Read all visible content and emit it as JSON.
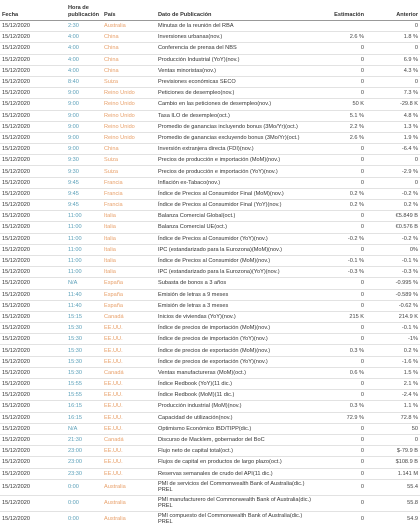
{
  "table": {
    "header": [
      "Fecha",
      "Hora de publicación",
      "País",
      "Dato de Publicación",
      "Estimación",
      "Anterior"
    ],
    "rows": [
      [
        "15/12/2020",
        "2:30",
        "Australia",
        "Minutas de la reunión del RBA",
        null,
        "0"
      ],
      [
        "15/12/2020",
        "4:00",
        "China",
        "Inversiones urbanas(nov.)",
        "2.6 %",
        "1.8 %"
      ],
      [
        "15/12/2020",
        "4:00",
        "China",
        "Conferencia de prensa del NBS",
        "0",
        "0"
      ],
      [
        "15/12/2020",
        "4:00",
        "China",
        "Producción Industrial (YoY)(nov.)",
        "0",
        "6.9 %"
      ],
      [
        "15/12/2020",
        "4:00",
        "China",
        "Ventas minoristas(nov.)",
        "0",
        "4.3 %"
      ],
      [
        "15/12/2020",
        "8:40",
        "Suiza",
        "Previsiones económicas SECO",
        "0",
        "0"
      ],
      [
        "15/12/2020",
        "9:00",
        "Reino Unido",
        "Peticiones de desempleo(nov.)",
        "0",
        "7.3 %"
      ],
      [
        "15/12/2020",
        "9:00",
        "Reino Unido",
        "Cambio en las peticiones de desempleo(nov.)",
        "50 K",
        "-29.8 K"
      ],
      [
        "15/12/2020",
        "9:00",
        "Reino Unido",
        "Tasa ILO de desempleo(oct.)",
        "5.1 %",
        "4.8 %"
      ],
      [
        "15/12/2020",
        "9:00",
        "Reino Unido",
        "Promedio de ganancias incluyendo bonus (3Mo/Yr)(oct.)",
        "2.2 %",
        "1.3 %"
      ],
      [
        "15/12/2020",
        "9:00",
        "Reino Unido",
        "Promedio de ganancias excluyendo bonus (3Mo/Yr)(oct.)",
        "2.6 %",
        "1.9 %"
      ],
      [
        "15/12/2020",
        "9:00",
        "China",
        "Inversión extranjera directa (FDI)(nov.)",
        "0",
        "-6.4 %"
      ],
      [
        "15/12/2020",
        "9:30",
        "Suiza",
        "Precios de producción e importación (MoM)(nov.)",
        "0",
        "0"
      ],
      [
        "15/12/2020",
        "9:30",
        "Suiza",
        "Precios de producción e importación (YoY)(nov.)",
        "0",
        "-2.9 %"
      ],
      [
        "15/12/2020",
        "9:45",
        "Francia",
        "Inflación ex-Tabaco(nov.)",
        "0",
        "0"
      ],
      [
        "15/12/2020",
        "9:45",
        "Francia",
        "Índice de Precios al Consumidor Final (MoM)(nov.)",
        "0.2 %",
        "-0.2 %"
      ],
      [
        "15/12/2020",
        "9:45",
        "Francia",
        "Índice de Precios al Consumidor Final (YoY)(nov.)",
        "0.2 %",
        "0.2 %"
      ],
      [
        "15/12/2020",
        "11:00",
        "Italia",
        "Balanza Comercial Global(oct.)",
        "0",
        "€5.849 B"
      ],
      [
        "15/12/2020",
        "11:00",
        "Italia",
        "Balanza Comercial UE(oct.)",
        "0",
        "€0.576 B"
      ],
      [
        "15/12/2020",
        "11:00",
        "Italia",
        "Índice de Precios al Consumidor (YoY)(nov.)",
        "-0.2 %",
        "-0.2 %"
      ],
      [
        "15/12/2020",
        "11:00",
        "Italia",
        "IPC (estandarizado para la Eurozona)(MoM)(nov.)",
        "0",
        "0%"
      ],
      [
        "15/12/2020",
        "11:00",
        "Italia",
        "Índice de Precios al Consumidor (MoM)(nov.)",
        "-0.1 %",
        "-0.1 %"
      ],
      [
        "15/12/2020",
        "11:00",
        "Italia",
        "IPC (estandarizado para la Eurozona)(YoY)(nov.)",
        "-0.3 %",
        "-0.3 %"
      ],
      [
        "15/12/2020",
        "N/A",
        "España",
        "Subasta de bonos a 3 años",
        "0",
        "-0.995 %"
      ],
      [
        "15/12/2020",
        "11:40",
        "España",
        "Emisión de letras a 9 meses",
        "0",
        "-0.589 %"
      ],
      [
        "15/12/2020",
        "11:40",
        "España",
        "Emisión de letras a 3 meses",
        "0",
        "-0.62 %"
      ],
      [
        "15/12/2020",
        "15:15",
        "Canadá",
        "Inicios de viviendas (YoY)(nov.)",
        "215 K",
        "214.9 K"
      ],
      [
        "15/12/2020",
        "15:30",
        "EE.UU.",
        "Índice de precios de importación (MoM)(nov.)",
        "0",
        "-0.1 %"
      ],
      [
        "15/12/2020",
        "15:30",
        "EE.UU.",
        "Índice de precios de importación (YoY)(nov.)",
        "0",
        "-1%"
      ],
      [
        "15/12/2020",
        "15:30",
        "EE.UU.",
        "Índice de precios de exportación (MoM)(nov.)",
        "0.3 %",
        "0.2 %"
      ],
      [
        "15/12/2020",
        "15:30",
        "EE.UU.",
        "Índice de precios de exportación (YoY)(nov.)",
        "0",
        "-1.6 %"
      ],
      [
        "15/12/2020",
        "15:30",
        "Canadá",
        "Ventas manufactureras (MoM)(oct.)",
        "0.6 %",
        "1.5 %"
      ],
      [
        "15/12/2020",
        "15:55",
        "EE.UU.",
        "Índice Redbook (YoY)(11 dic.)",
        "0",
        "2.1 %"
      ],
      [
        "15/12/2020",
        "15:55",
        "EE.UU.",
        "Índice Redbook (MoM)(11 dic.)",
        "0",
        "-2.4 %"
      ],
      [
        "15/12/2020",
        "16:15",
        "EE.UU.",
        "Producción industrial (MoM)(nov.)",
        "0.3 %",
        "1.1 %"
      ],
      [
        "15/12/2020",
        "16:15",
        "EE.UU.",
        "Capacidad de utilización(nov.)",
        "72.9 %",
        "72.8 %"
      ],
      [
        "15/12/2020",
        "N/A",
        "EE.UU.",
        "Optimismo Económico IBD/TIPP(dic.)",
        "0",
        "50"
      ],
      [
        "15/12/2020",
        "21:30",
        "Canadá",
        "Discurso de Macklem, gobernador del BoC",
        "0",
        "0"
      ],
      [
        "15/12/2020",
        "23:00",
        "EE.UU.",
        "Flujo neto de capital total(oct.)",
        "0",
        "$-79.9 B"
      ],
      [
        "15/12/2020",
        "23:00",
        "EE.UU.",
        "Flujos de capital en productos de largo plazo(oct.)",
        "0",
        "$108.9 B"
      ],
      [
        "15/12/2020",
        "23:30",
        "EE.UU.",
        "Reservas semanales de crudo del API(11 dic.)",
        "0",
        "1.141 M"
      ],
      [
        "15/12/2020",
        "0:00",
        "Australia",
        "PMI de servicios del Commonwealth Bank of Australia(dic.) PREL",
        "0",
        "55.4"
      ],
      [
        "15/12/2020",
        "0:00",
        "Australia",
        "PMI manufacturero del Commonwealth Bank of Australia(dic.) PREL",
        "0",
        "55.8"
      ],
      [
        "15/12/2020",
        "0:00",
        "Australia",
        "PMI compuesto del Commonwealth Bank of Australia(dic.) PREL",
        "0",
        "54.9"
      ]
    ]
  }
}
